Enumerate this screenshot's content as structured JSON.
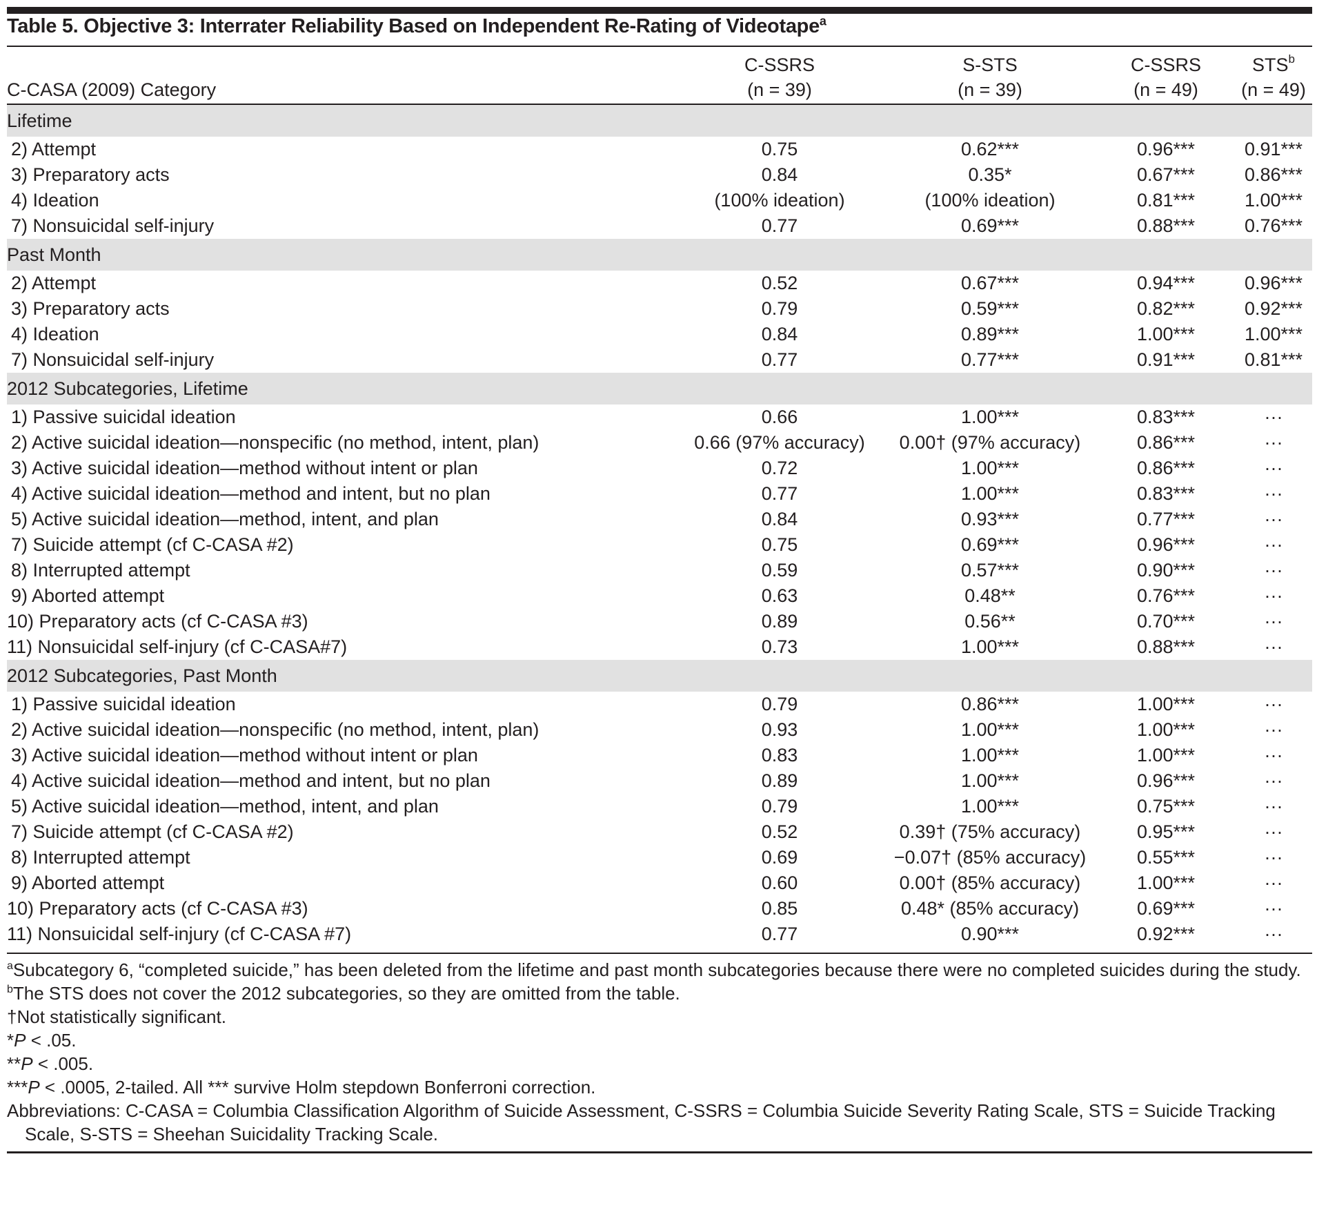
{
  "title": {
    "text": "Table 5. Objective 3: Interrater Reliability Based on Independent Re-Rating of Videotape",
    "sup": "a"
  },
  "header": {
    "label": "C-CASA (2009) Category",
    "columns": [
      {
        "name": "C-SSRS",
        "sup": "",
        "n": "(n = 39)"
      },
      {
        "name": "S-STS",
        "sup": "",
        "n": "(n = 39)"
      },
      {
        "name": "C-SSRS",
        "sup": "",
        "n": "(n = 49)"
      },
      {
        "name": "STS",
        "sup": "b",
        "n": "(n = 49)"
      }
    ]
  },
  "sections": [
    {
      "title": "Lifetime",
      "rows": [
        {
          "label": "2) Attempt",
          "values": [
            "0.75",
            "0.62***",
            "0.96***",
            "0.91***"
          ]
        },
        {
          "label": "3) Preparatory acts",
          "values": [
            "0.84",
            "0.35*",
            "0.67***",
            "0.86***"
          ]
        },
        {
          "label": "4) Ideation",
          "values": [
            "(100% ideation)",
            "(100% ideation)",
            "0.81***",
            "1.00***"
          ]
        },
        {
          "label": "7) Nonsuicidal self-injury",
          "values": [
            "0.77",
            "0.69***",
            "0.88***",
            "0.76***"
          ]
        }
      ]
    },
    {
      "title": "Past Month",
      "rows": [
        {
          "label": "2) Attempt",
          "values": [
            "0.52",
            "0.67***",
            "0.94***",
            "0.96***"
          ]
        },
        {
          "label": "3) Preparatory acts",
          "values": [
            "0.79",
            "0.59***",
            "0.82***",
            "0.92***"
          ]
        },
        {
          "label": "4) Ideation",
          "values": [
            "0.84",
            "0.89***",
            "1.00***",
            "1.00***"
          ]
        },
        {
          "label": "7) Nonsuicidal self-injury",
          "values": [
            "0.77",
            "0.77***",
            "0.91***",
            "0.81***"
          ]
        }
      ]
    },
    {
      "title": "2012 Subcategories, Lifetime",
      "rows": [
        {
          "label": "1) Passive suicidal ideation",
          "values": [
            "0.66",
            "1.00***",
            "0.83***",
            "···"
          ]
        },
        {
          "label": "2) Active suicidal ideation—nonspecific (no method, intent, plan)",
          "values": [
            "0.66 (97% accuracy)",
            "0.00† (97% accuracy)",
            "0.86***",
            "···"
          ]
        },
        {
          "label": "3) Active suicidal ideation—method without intent or plan",
          "values": [
            "0.72",
            "1.00***",
            "0.86***",
            "···"
          ]
        },
        {
          "label": "4) Active suicidal ideation—method and intent, but no plan",
          "values": [
            "0.77",
            "1.00***",
            "0.83***",
            "···"
          ]
        },
        {
          "label": "5) Active suicidal ideation—method, intent, and plan",
          "values": [
            "0.84",
            "0.93***",
            "0.77***",
            "···"
          ]
        },
        {
          "label": "7) Suicide attempt (cf C-CASA #2)",
          "values": [
            "0.75",
            "0.69***",
            "0.96***",
            "···"
          ]
        },
        {
          "label": "8) Interrupted attempt",
          "values": [
            "0.59",
            "0.57***",
            "0.90***",
            "···"
          ]
        },
        {
          "label": "9) Aborted attempt",
          "values": [
            "0.63",
            "0.48**",
            "0.76***",
            "···"
          ]
        },
        {
          "label": "10) Preparatory acts (cf C-CASA #3)",
          "values": [
            "0.89",
            "0.56**",
            "0.70***",
            "···"
          ]
        },
        {
          "label": "11) Nonsuicidal self-injury (cf C-CASA#7)",
          "values": [
            "0.73",
            "1.00***",
            "0.88***",
            "···"
          ]
        }
      ]
    },
    {
      "title": "2012 Subcategories, Past Month",
      "rows": [
        {
          "label": "1) Passive suicidal ideation",
          "values": [
            "0.79",
            "0.86***",
            "1.00***",
            "···"
          ]
        },
        {
          "label": "2) Active suicidal ideation—nonspecific (no method, intent, plan)",
          "values": [
            "0.93",
            "1.00***",
            "1.00***",
            "···"
          ]
        },
        {
          "label": "3) Active suicidal ideation—method without intent or plan",
          "values": [
            "0.83",
            "1.00***",
            "1.00***",
            "···"
          ]
        },
        {
          "label": "4) Active suicidal ideation—method and intent, but no plan",
          "values": [
            "0.89",
            "1.00***",
            "0.96***",
            "···"
          ]
        },
        {
          "label": "5) Active suicidal ideation—method, intent, and plan",
          "values": [
            "0.79",
            "1.00***",
            "0.75***",
            "···"
          ]
        },
        {
          "label": "7) Suicide attempt (cf C-CASA #2)",
          "values": [
            "0.52",
            "0.39† (75% accuracy)",
            "0.95***",
            "···"
          ]
        },
        {
          "label": "8) Interrupted attempt",
          "values": [
            "0.69",
            "−0.07† (85% accuracy)",
            "0.55***",
            "···"
          ]
        },
        {
          "label": "9) Aborted attempt",
          "values": [
            "0.60",
            "0.00† (85% accuracy)",
            "1.00***",
            "···"
          ]
        },
        {
          "label": "10) Preparatory acts (cf C-CASA #3)",
          "values": [
            "0.85",
            "0.48* (85% accuracy)",
            "0.69***",
            "···"
          ]
        },
        {
          "label": "11) Nonsuicidal self-injury (cf C-CASA #7)",
          "values": [
            "0.77",
            "0.90***",
            "0.92***",
            "···"
          ]
        }
      ]
    }
  ],
  "footnotes": [
    {
      "sup": "a",
      "mark": "",
      "p": "",
      "text": "Subcategory 6, “completed suicide,” has been deleted from the lifetime and past month subcategories because there were no completed suicides during the study."
    },
    {
      "sup": "b",
      "mark": "",
      "p": "",
      "text": "The STS does not cover the 2012 subcategories, so they are omitted from the table."
    },
    {
      "sup": "",
      "mark": "†",
      "p": "",
      "text": "Not statistically significant."
    },
    {
      "sup": "",
      "mark": "*",
      "p": "P",
      "text": " < .05."
    },
    {
      "sup": "",
      "mark": "**",
      "p": "P",
      "text": " < .005."
    },
    {
      "sup": "",
      "mark": "***",
      "p": "P",
      "text": " < .0005, 2-tailed. All *** survive Holm stepdown Bonferroni correction."
    },
    {
      "sup": "",
      "mark": "",
      "p": "",
      "text": "Abbreviations: C-CASA = Columbia Classification Algorithm of Suicide Assessment, C-SSRS = Columbia Suicide Severity Rating Scale, STS = Suicide Tracking Scale, S-STS = Sheehan Suicidality Tracking Scale."
    }
  ]
}
